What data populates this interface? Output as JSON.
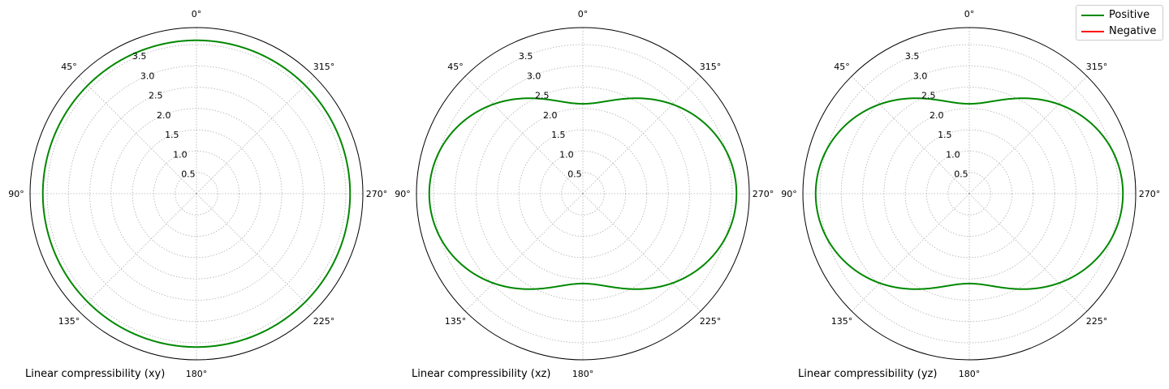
{
  "chart_data": [
    {
      "type": "polar-line",
      "title": "Linear compressibility (xy)",
      "theta_ticks": [
        "0°",
        "45°",
        "90°",
        "135°",
        "180°",
        "225°",
        "270°",
        "315°"
      ],
      "r_ticks": [
        "0.5",
        "1.0",
        "1.5",
        "2.0",
        "2.5",
        "3.0",
        "3.5"
      ],
      "rmax": 3.9,
      "grid": true,
      "shape": {
        "a": 3.6,
        "b": 3.6,
        "dip": 0.0
      },
      "series": [
        {
          "name": "Positive",
          "color": "#008800",
          "r_at_0deg": 3.6,
          "r_at_90deg": 3.6
        }
      ]
    },
    {
      "type": "polar-line",
      "title": "Linear compressibility (xz)",
      "theta_ticks": [
        "0°",
        "45°",
        "90°",
        "135°",
        "180°",
        "225°",
        "270°",
        "315°"
      ],
      "r_ticks": [
        "0.5",
        "1.0",
        "1.5",
        "2.0",
        "2.5",
        "3.0",
        "3.5"
      ],
      "rmax": 3.9,
      "grid": true,
      "shape": {
        "a": 3.6,
        "b": 2.16,
        "dip": 0.05
      },
      "series": [
        {
          "name": "Positive",
          "color": "#008800",
          "r_at_0deg": 2.16,
          "r_at_90deg": 3.6
        }
      ]
    },
    {
      "type": "polar-line",
      "title": "Linear compressibility (yz)",
      "theta_ticks": [
        "0°",
        "45°",
        "90°",
        "135°",
        "180°",
        "225°",
        "270°",
        "315°"
      ],
      "r_ticks": [
        "0.5",
        "1.0",
        "1.5",
        "2.0",
        "2.5",
        "3.0",
        "3.5"
      ],
      "rmax": 3.9,
      "grid": true,
      "shape": {
        "a": 3.6,
        "b": 2.16,
        "dip": 0.05
      },
      "series": [
        {
          "name": "Positive",
          "color": "#008800",
          "r_at_0deg": 2.16,
          "r_at_90deg": 3.6
        }
      ]
    }
  ],
  "legend": {
    "placement": "top-right",
    "items": [
      {
        "label": "Positive",
        "color": "#008800"
      },
      {
        "label": "Negative",
        "color": "#ff0000"
      }
    ]
  }
}
